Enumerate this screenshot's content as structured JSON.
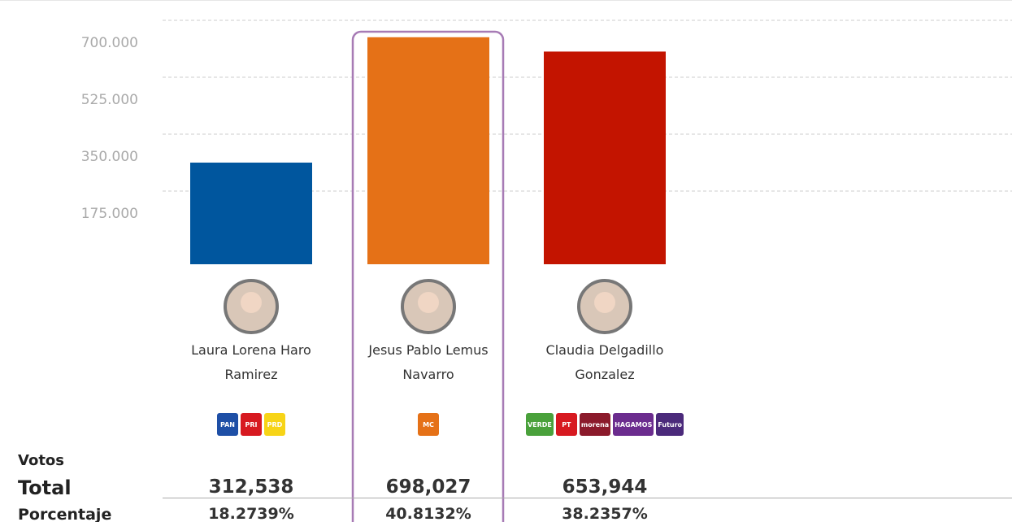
{
  "chart_data": {
    "type": "bar",
    "categories": [
      "Laura Lorena Haro Ramirez",
      "Jesus Pablo Lemus Navarro",
      "Claudia Delgadillo Gonzalez"
    ],
    "values": [
      312538,
      698027,
      653944
    ],
    "value_labels": [
      "312,538",
      "698,027",
      "653,944"
    ],
    "colors": [
      "#00569e",
      "#e57117",
      "#c31400"
    ],
    "ylim": [
      0,
      800000
    ],
    "yticks": [
      {
        "value": 175000,
        "label": "175.000"
      },
      {
        "value": 350000,
        "label": "350.000"
      },
      {
        "value": 525000,
        "label": "525.000"
      },
      {
        "value": 700000,
        "label": "700.000"
      }
    ],
    "grid": true,
    "highlight": 1
  },
  "parties": [
    [
      {
        "label": "PAN",
        "color": "#1e4fa6"
      },
      {
        "label": "PRI",
        "color": "#d71920"
      },
      {
        "label": "PRD",
        "color": "#f7d417"
      }
    ],
    [
      {
        "label": "MC",
        "color": "#e57117"
      }
    ],
    [
      {
        "label": "VERDE",
        "color": "#4aa13b"
      },
      {
        "label": "PT",
        "color": "#d71920"
      },
      {
        "label": "morena",
        "color": "#8b1a2b"
      },
      {
        "label": "HAGAMOS",
        "color": "#6b2c8e"
      },
      {
        "label": "Futuro",
        "color": "#4b2a7b"
      }
    ]
  ],
  "summary": {
    "heading": "Votos",
    "total_label": "Total",
    "percent_label": "Porcentaje",
    "percentages": [
      "18.2739%",
      "40.8132%",
      "38.2357%"
    ]
  }
}
